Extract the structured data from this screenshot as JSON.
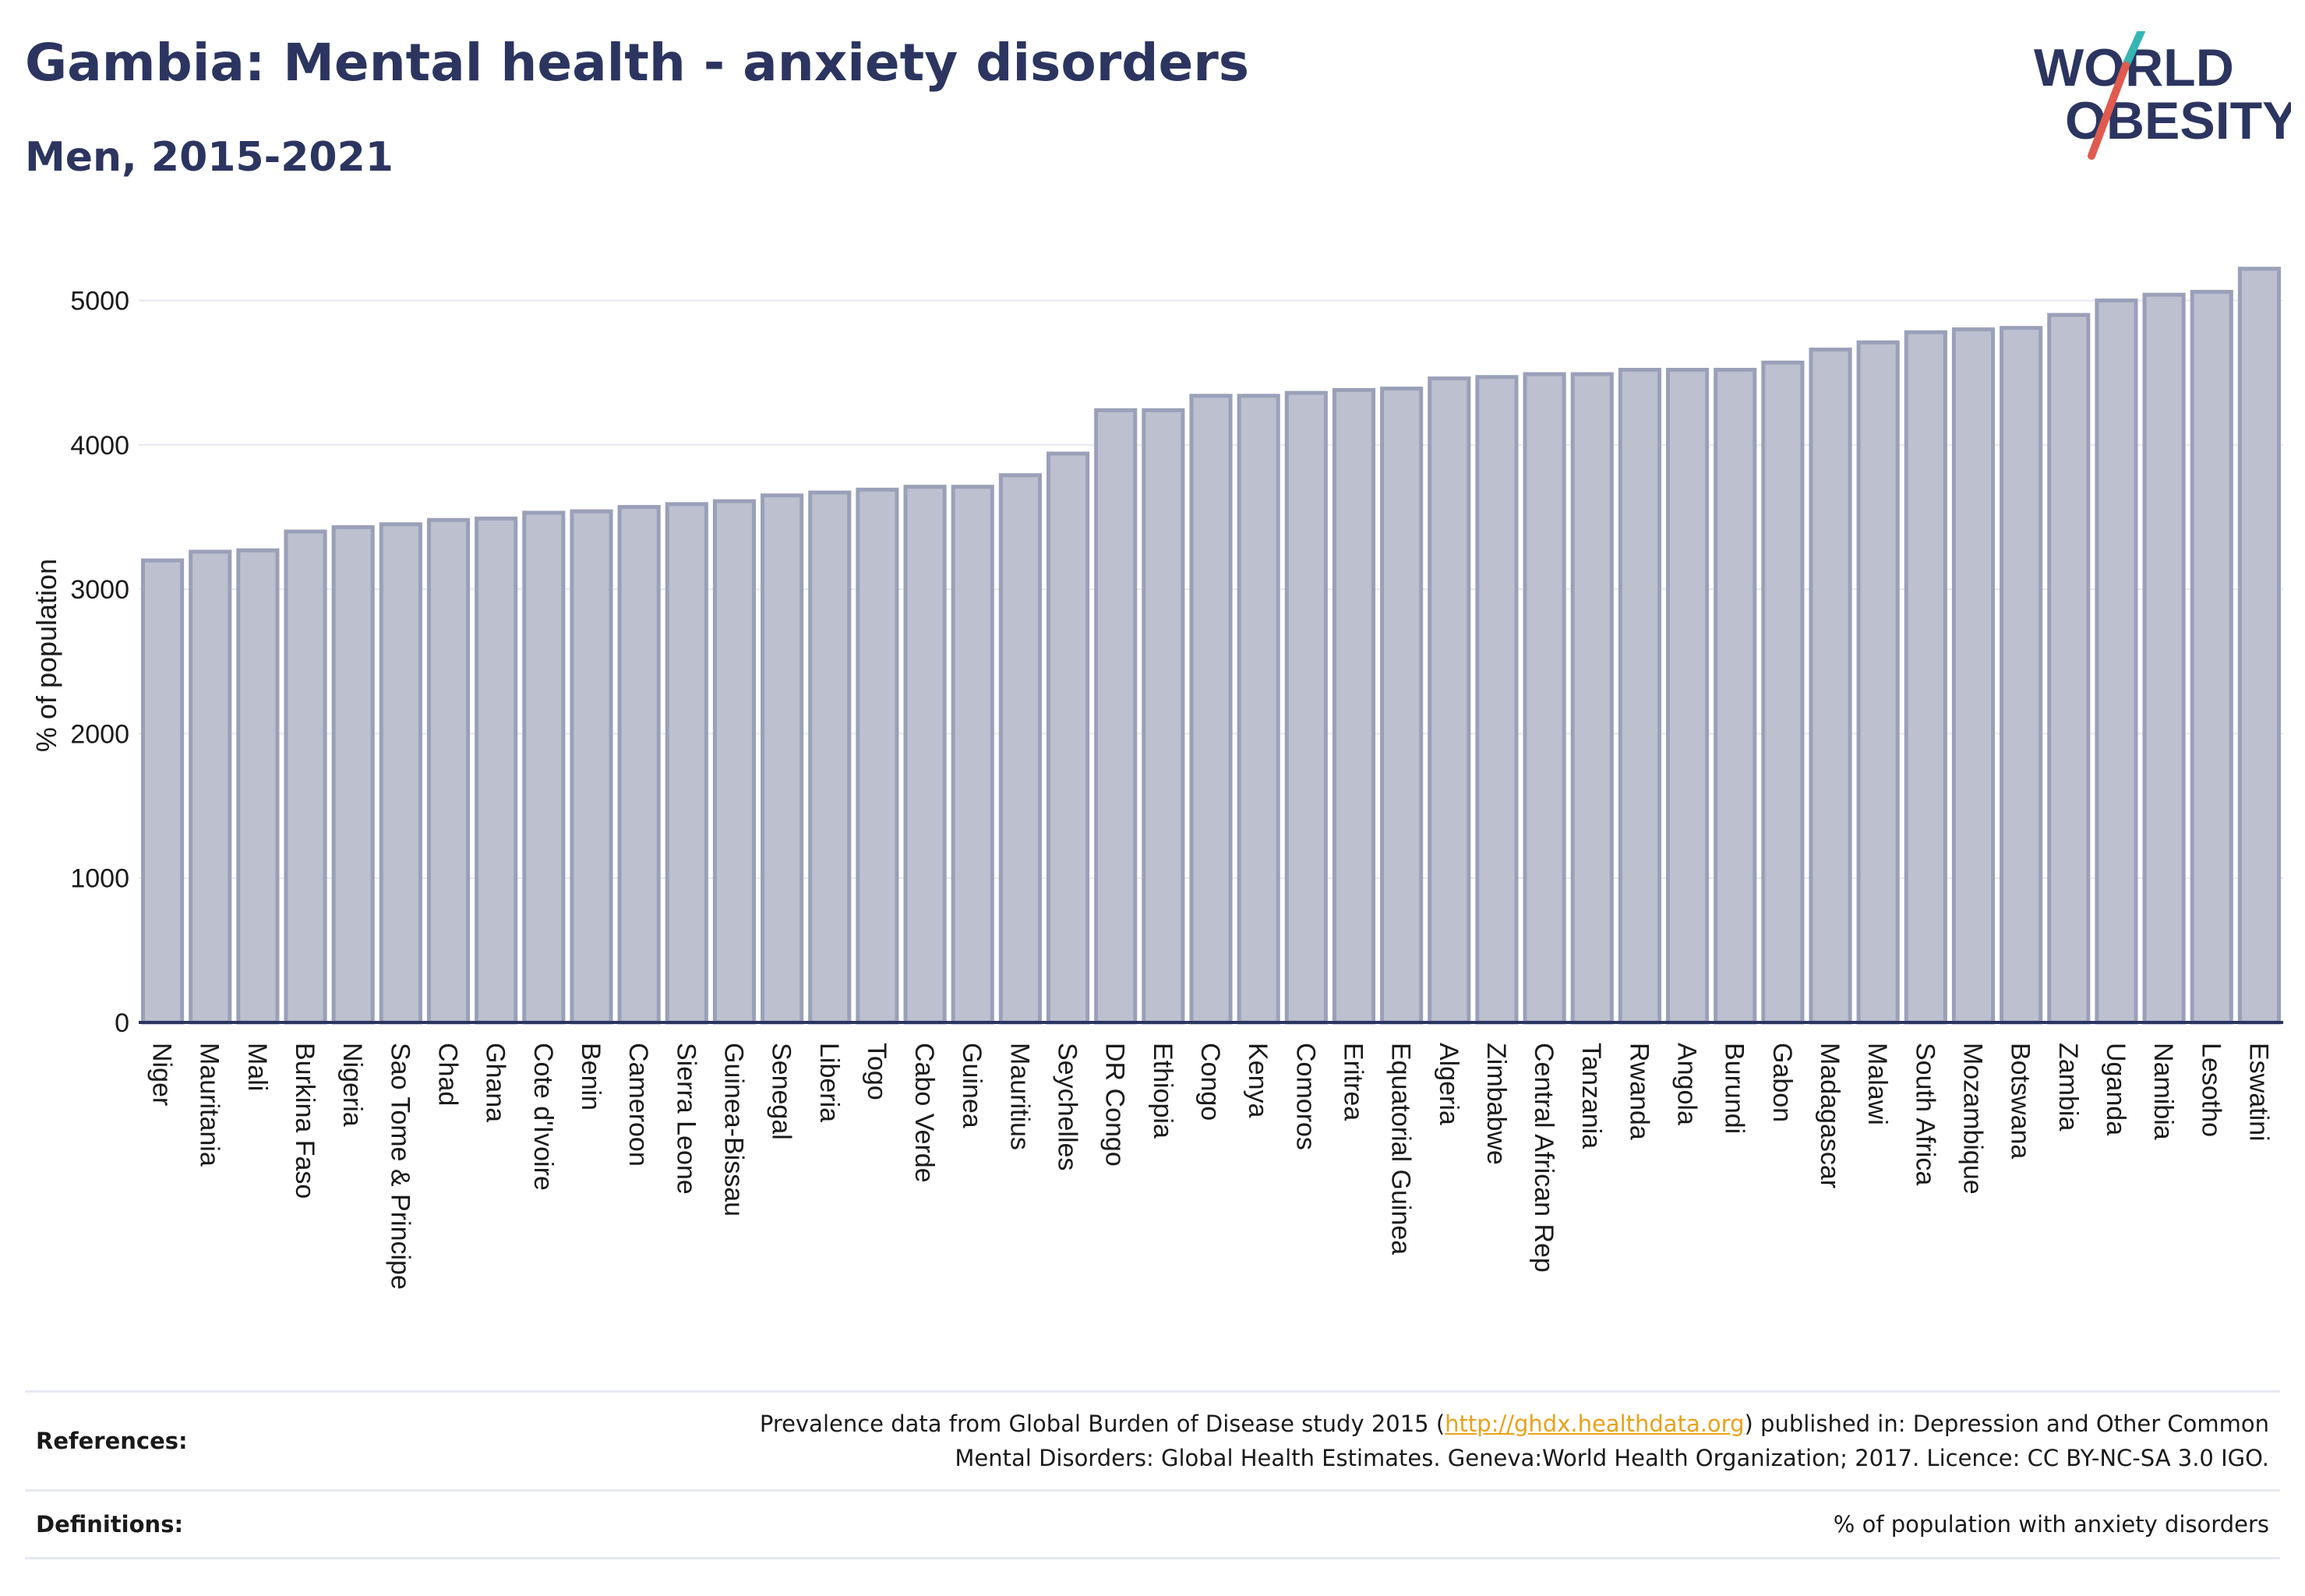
{
  "header": {
    "title": "Gambia: Mental health - anxiety disorders",
    "subtitle": "Men, 2015-2021",
    "logo_text": [
      "WORLD",
      "OBESITY"
    ]
  },
  "colors": {
    "title": "#2b3560",
    "bar_fill": "#bcc0cf",
    "bar_stroke": "#9aa0b8",
    "grid": "#e6e8f0",
    "axis": "#2b3560",
    "link": "#e8a21a",
    "logo_teal": "#35b6b4",
    "logo_red": "#e05a4f"
  },
  "chart_data": {
    "type": "bar",
    "title": "Gambia: Mental health - anxiety disorders",
    "subtitle": "Men, 2015-2021",
    "ylabel": "% of population",
    "ylim": [
      0,
      5300
    ],
    "yticks": [
      0,
      1000,
      2000,
      3000,
      4000,
      5000
    ],
    "grid": true,
    "categories": [
      "Niger",
      "Mauritania",
      "Mali",
      "Burkina Faso",
      "Nigeria",
      "Sao Tome & Principe",
      "Chad",
      "Ghana",
      "Cote d'Ivoire",
      "Benin",
      "Cameroon",
      "Sierra Leone",
      "Guinea-Bissau",
      "Senegal",
      "Liberia",
      "Togo",
      "Cabo Verde",
      "Guinea",
      "Mauritius",
      "Seychelles",
      "DR Congo",
      "Ethiopia",
      "Congo",
      "Kenya",
      "Comoros",
      "Eritrea",
      "Equatorial Guinea",
      "Algeria",
      "Zimbabwe",
      "Central African Rep",
      "Tanzania",
      "Rwanda",
      "Angola",
      "Burundi",
      "Gabon",
      "Madagascar",
      "Malawi",
      "South Africa",
      "Mozambique",
      "Botswana",
      "Zambia",
      "Uganda",
      "Namibia",
      "Lesotho",
      "Eswatini"
    ],
    "values": [
      3200,
      3260,
      3270,
      3400,
      3430,
      3450,
      3480,
      3490,
      3530,
      3540,
      3570,
      3590,
      3610,
      3650,
      3670,
      3690,
      3710,
      3710,
      3790,
      3940,
      4240,
      4240,
      4340,
      4340,
      4360,
      4380,
      4390,
      4460,
      4470,
      4490,
      4490,
      4520,
      4520,
      4520,
      4570,
      4660,
      4710,
      4780,
      4800,
      4810,
      4900,
      5000,
      5040,
      5060,
      5220
    ]
  },
  "references": {
    "label": "References:",
    "text_before_link": "Prevalence data from Global Burden of Disease study 2015 (",
    "link": "http://ghdx.healthdata.org",
    "text_after_link": ") published in: Depression and Other Common",
    "line2": "Mental Disorders: Global Health Estimates. Geneva:World Health Organization; 2017. Licence: CC BY-NC-SA 3.0 IGO."
  },
  "definitions": {
    "label": "Definitions:",
    "text": "% of population with anxiety disorders"
  }
}
